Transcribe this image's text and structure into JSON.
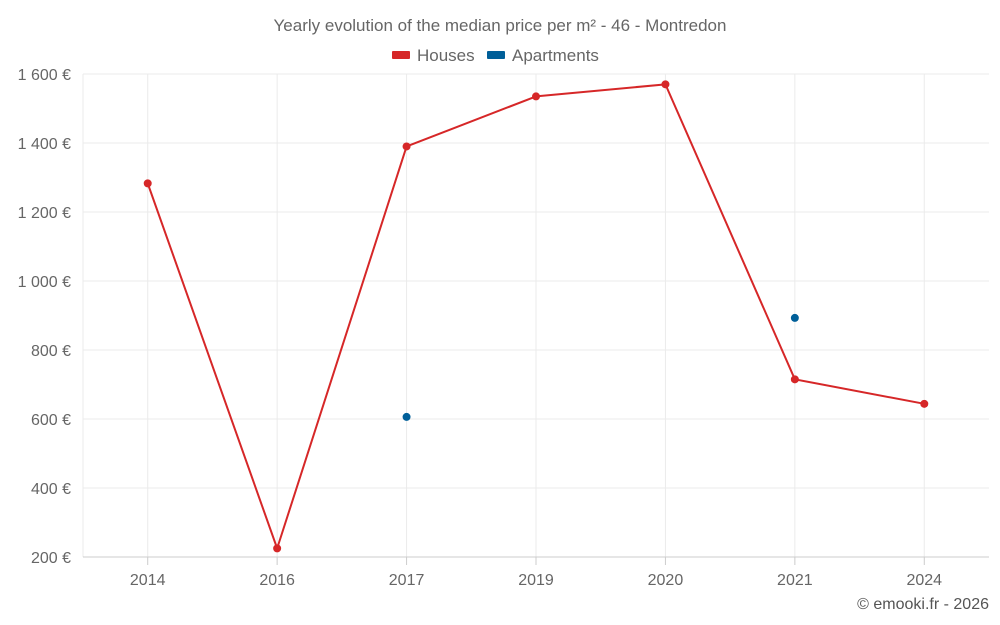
{
  "chart_data": {
    "type": "line",
    "title": "Yearly evolution of the median price per m² - 46 - Montredon",
    "categories": [
      "2014",
      "2016",
      "2017",
      "2019",
      "2020",
      "2021",
      "2024"
    ],
    "series": [
      {
        "name": "Houses",
        "color": "#d62728",
        "values": [
          1283,
          225,
          1390,
          1535,
          1570,
          715,
          644
        ]
      },
      {
        "name": "Apartments",
        "color": "#005f99",
        "values": [
          null,
          null,
          606,
          null,
          null,
          893,
          null
        ]
      }
    ],
    "yticks": [
      200,
      400,
      600,
      800,
      1000,
      1200,
      1400,
      1600
    ],
    "ytick_labels": [
      "200 €",
      "400 €",
      "600 €",
      "800 €",
      "1 000 €",
      "1 200 €",
      "1 400 €",
      "1 600 €"
    ],
    "ylim": [
      200,
      1600
    ],
    "xlabel": "",
    "ylabel": "",
    "grid": true,
    "legend": "top-center"
  },
  "credit": "© emooki.fr - 2026"
}
